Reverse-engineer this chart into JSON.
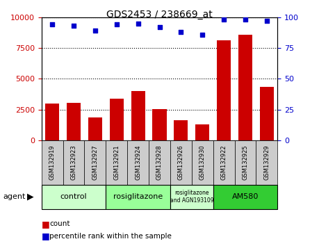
{
  "title": "GDS2453 / 238669_at",
  "samples": [
    "GSM132919",
    "GSM132923",
    "GSM132927",
    "GSM132921",
    "GSM132924",
    "GSM132928",
    "GSM132926",
    "GSM132930",
    "GSM132922",
    "GSM132925",
    "GSM132929"
  ],
  "counts": [
    3000,
    3050,
    1850,
    3350,
    4000,
    2550,
    1600,
    1300,
    8150,
    8600,
    4350
  ],
  "percentiles": [
    94,
    93,
    89,
    94,
    95,
    92,
    88,
    86,
    98,
    98,
    97
  ],
  "bar_color": "#cc0000",
  "dot_color": "#0000cc",
  "ylim_left": [
    0,
    10000
  ],
  "ylim_right": [
    0,
    100
  ],
  "yticks_left": [
    0,
    2500,
    5000,
    7500,
    10000
  ],
  "yticks_right": [
    0,
    25,
    50,
    75,
    100
  ],
  "groups": [
    {
      "label": "control",
      "start": 0,
      "end": 3,
      "color": "#ccffcc"
    },
    {
      "label": "rosiglitazone",
      "start": 3,
      "end": 6,
      "color": "#99ff99"
    },
    {
      "label": "rosiglitazone\nand AGN193109",
      "start": 6,
      "end": 8,
      "color": "#ccffcc"
    },
    {
      "label": "AM580",
      "start": 8,
      "end": 11,
      "color": "#33cc33"
    }
  ],
  "agent_label": "agent",
  "legend_count_label": "count",
  "legend_pct_label": "percentile rank within the sample",
  "bg_color": "#ffffff",
  "plot_bg_color": "#ffffff",
  "tick_label_color_left": "#cc0000",
  "tick_label_color_right": "#0000cc",
  "sample_bg_color": "#cccccc"
}
